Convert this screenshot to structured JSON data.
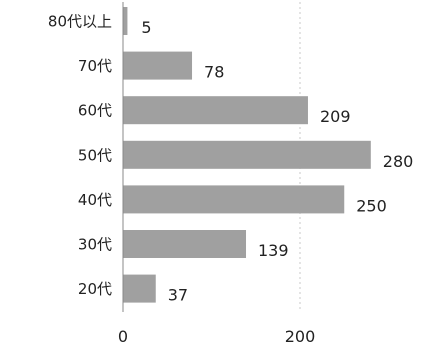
{
  "chart_data": {
    "type": "bar",
    "orientation": "horizontal",
    "categories": [
      "80代以上",
      "70代",
      "60代",
      "50代",
      "40代",
      "30代",
      "20代"
    ],
    "values": [
      5,
      78,
      209,
      280,
      250,
      139,
      37
    ],
    "xticks": [
      0,
      200
    ],
    "xlim": [
      0,
      300
    ],
    "grid": true,
    "bar_color": "#a0a0a0"
  }
}
